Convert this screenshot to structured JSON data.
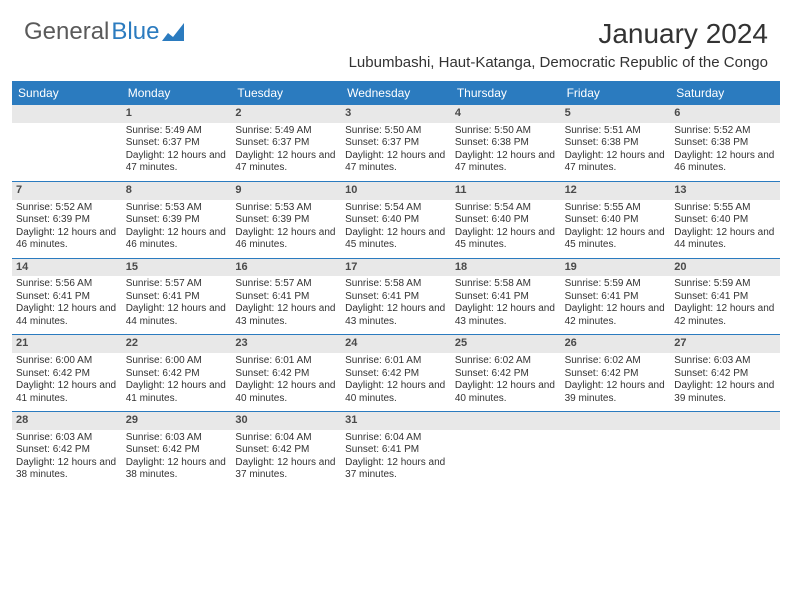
{
  "logo": {
    "text1": "General",
    "text2": "Blue"
  },
  "title": "January 2024",
  "location": "Lubumbashi, Haut-Katanga, Democratic Republic of the Congo",
  "colors": {
    "header_blue": "#2b7bbf",
    "daynum_bg": "#e8e8e8",
    "text": "#333333",
    "logo_gray": "#5a5a5a"
  },
  "day_labels": [
    "Sunday",
    "Monday",
    "Tuesday",
    "Wednesday",
    "Thursday",
    "Friday",
    "Saturday"
  ],
  "weeks": [
    [
      {
        "n": "",
        "sr": "",
        "ss": "",
        "dl": ""
      },
      {
        "n": "1",
        "sr": "Sunrise: 5:49 AM",
        "ss": "Sunset: 6:37 PM",
        "dl": "Daylight: 12 hours and 47 minutes."
      },
      {
        "n": "2",
        "sr": "Sunrise: 5:49 AM",
        "ss": "Sunset: 6:37 PM",
        "dl": "Daylight: 12 hours and 47 minutes."
      },
      {
        "n": "3",
        "sr": "Sunrise: 5:50 AM",
        "ss": "Sunset: 6:37 PM",
        "dl": "Daylight: 12 hours and 47 minutes."
      },
      {
        "n": "4",
        "sr": "Sunrise: 5:50 AM",
        "ss": "Sunset: 6:38 PM",
        "dl": "Daylight: 12 hours and 47 minutes."
      },
      {
        "n": "5",
        "sr": "Sunrise: 5:51 AM",
        "ss": "Sunset: 6:38 PM",
        "dl": "Daylight: 12 hours and 47 minutes."
      },
      {
        "n": "6",
        "sr": "Sunrise: 5:52 AM",
        "ss": "Sunset: 6:38 PM",
        "dl": "Daylight: 12 hours and 46 minutes."
      }
    ],
    [
      {
        "n": "7",
        "sr": "Sunrise: 5:52 AM",
        "ss": "Sunset: 6:39 PM",
        "dl": "Daylight: 12 hours and 46 minutes."
      },
      {
        "n": "8",
        "sr": "Sunrise: 5:53 AM",
        "ss": "Sunset: 6:39 PM",
        "dl": "Daylight: 12 hours and 46 minutes."
      },
      {
        "n": "9",
        "sr": "Sunrise: 5:53 AM",
        "ss": "Sunset: 6:39 PM",
        "dl": "Daylight: 12 hours and 46 minutes."
      },
      {
        "n": "10",
        "sr": "Sunrise: 5:54 AM",
        "ss": "Sunset: 6:40 PM",
        "dl": "Daylight: 12 hours and 45 minutes."
      },
      {
        "n": "11",
        "sr": "Sunrise: 5:54 AM",
        "ss": "Sunset: 6:40 PM",
        "dl": "Daylight: 12 hours and 45 minutes."
      },
      {
        "n": "12",
        "sr": "Sunrise: 5:55 AM",
        "ss": "Sunset: 6:40 PM",
        "dl": "Daylight: 12 hours and 45 minutes."
      },
      {
        "n": "13",
        "sr": "Sunrise: 5:55 AM",
        "ss": "Sunset: 6:40 PM",
        "dl": "Daylight: 12 hours and 44 minutes."
      }
    ],
    [
      {
        "n": "14",
        "sr": "Sunrise: 5:56 AM",
        "ss": "Sunset: 6:41 PM",
        "dl": "Daylight: 12 hours and 44 minutes."
      },
      {
        "n": "15",
        "sr": "Sunrise: 5:57 AM",
        "ss": "Sunset: 6:41 PM",
        "dl": "Daylight: 12 hours and 44 minutes."
      },
      {
        "n": "16",
        "sr": "Sunrise: 5:57 AM",
        "ss": "Sunset: 6:41 PM",
        "dl": "Daylight: 12 hours and 43 minutes."
      },
      {
        "n": "17",
        "sr": "Sunrise: 5:58 AM",
        "ss": "Sunset: 6:41 PM",
        "dl": "Daylight: 12 hours and 43 minutes."
      },
      {
        "n": "18",
        "sr": "Sunrise: 5:58 AM",
        "ss": "Sunset: 6:41 PM",
        "dl": "Daylight: 12 hours and 43 minutes."
      },
      {
        "n": "19",
        "sr": "Sunrise: 5:59 AM",
        "ss": "Sunset: 6:41 PM",
        "dl": "Daylight: 12 hours and 42 minutes."
      },
      {
        "n": "20",
        "sr": "Sunrise: 5:59 AM",
        "ss": "Sunset: 6:41 PM",
        "dl": "Daylight: 12 hours and 42 minutes."
      }
    ],
    [
      {
        "n": "21",
        "sr": "Sunrise: 6:00 AM",
        "ss": "Sunset: 6:42 PM",
        "dl": "Daylight: 12 hours and 41 minutes."
      },
      {
        "n": "22",
        "sr": "Sunrise: 6:00 AM",
        "ss": "Sunset: 6:42 PM",
        "dl": "Daylight: 12 hours and 41 minutes."
      },
      {
        "n": "23",
        "sr": "Sunrise: 6:01 AM",
        "ss": "Sunset: 6:42 PM",
        "dl": "Daylight: 12 hours and 40 minutes."
      },
      {
        "n": "24",
        "sr": "Sunrise: 6:01 AM",
        "ss": "Sunset: 6:42 PM",
        "dl": "Daylight: 12 hours and 40 minutes."
      },
      {
        "n": "25",
        "sr": "Sunrise: 6:02 AM",
        "ss": "Sunset: 6:42 PM",
        "dl": "Daylight: 12 hours and 40 minutes."
      },
      {
        "n": "26",
        "sr": "Sunrise: 6:02 AM",
        "ss": "Sunset: 6:42 PM",
        "dl": "Daylight: 12 hours and 39 minutes."
      },
      {
        "n": "27",
        "sr": "Sunrise: 6:03 AM",
        "ss": "Sunset: 6:42 PM",
        "dl": "Daylight: 12 hours and 39 minutes."
      }
    ],
    [
      {
        "n": "28",
        "sr": "Sunrise: 6:03 AM",
        "ss": "Sunset: 6:42 PM",
        "dl": "Daylight: 12 hours and 38 minutes."
      },
      {
        "n": "29",
        "sr": "Sunrise: 6:03 AM",
        "ss": "Sunset: 6:42 PM",
        "dl": "Daylight: 12 hours and 38 minutes."
      },
      {
        "n": "30",
        "sr": "Sunrise: 6:04 AM",
        "ss": "Sunset: 6:42 PM",
        "dl": "Daylight: 12 hours and 37 minutes."
      },
      {
        "n": "31",
        "sr": "Sunrise: 6:04 AM",
        "ss": "Sunset: 6:41 PM",
        "dl": "Daylight: 12 hours and 37 minutes."
      },
      {
        "n": "",
        "sr": "",
        "ss": "",
        "dl": ""
      },
      {
        "n": "",
        "sr": "",
        "ss": "",
        "dl": ""
      },
      {
        "n": "",
        "sr": "",
        "ss": "",
        "dl": ""
      }
    ]
  ]
}
